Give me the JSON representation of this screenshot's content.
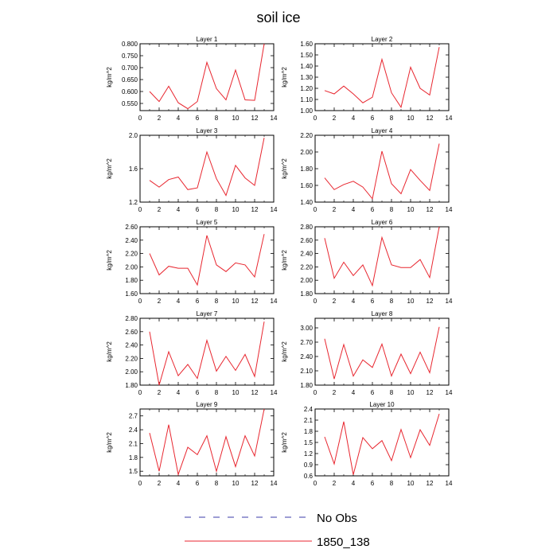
{
  "figure": {
    "title": "soil ice",
    "legend": [
      {
        "label": "No Obs",
        "color": "#3b3ba8",
        "dash": "dashed"
      },
      {
        "label": "1850_138",
        "color": "#e8262f",
        "dash": "solid"
      }
    ]
  },
  "chart_data": [
    {
      "type": "line",
      "title": "Layer 1",
      "xlabel": "",
      "ylabel": "kg/m^2",
      "xlim": [
        0,
        14
      ],
      "xticks": [
        "0",
        "2",
        "4",
        "6",
        "8",
        "10",
        "12",
        "14"
      ],
      "ylim": [
        0.52,
        0.8
      ],
      "yticks": [
        "0.550",
        "0.600",
        "0.650",
        "0.700",
        "0.750",
        "0.800"
      ],
      "series": [
        {
          "name": "1850_138",
          "color": "#e8262f",
          "x": [
            1,
            2,
            3,
            4,
            5,
            6,
            7,
            8,
            9,
            10,
            11,
            12,
            13
          ],
          "values": [
            0.6,
            0.558,
            0.622,
            0.553,
            0.528,
            0.558,
            0.722,
            0.612,
            0.565,
            0.69,
            0.565,
            0.563,
            0.8
          ]
        }
      ]
    },
    {
      "type": "line",
      "title": "Layer 2",
      "xlabel": "",
      "ylabel": "kg/m^2",
      "xlim": [
        0,
        14
      ],
      "xticks": [
        "0",
        "2",
        "4",
        "6",
        "8",
        "10",
        "12",
        "14"
      ],
      "ylim": [
        1.0,
        1.6
      ],
      "yticks": [
        "1.00",
        "1.10",
        "1.20",
        "1.30",
        "1.40",
        "1.50",
        "1.60"
      ],
      "series": [
        {
          "name": "1850_138",
          "color": "#e8262f",
          "x": [
            1,
            2,
            3,
            4,
            5,
            6,
            7,
            8,
            9,
            10,
            11,
            12,
            13
          ],
          "values": [
            1.18,
            1.15,
            1.22,
            1.15,
            1.07,
            1.12,
            1.46,
            1.16,
            1.03,
            1.39,
            1.2,
            1.14,
            1.57
          ]
        }
      ]
    },
    {
      "type": "line",
      "title": "Layer 3",
      "xlabel": "",
      "ylabel": "kg/m^2",
      "xlim": [
        0,
        14
      ],
      "xticks": [
        "0",
        "2",
        "4",
        "6",
        "8",
        "10",
        "12",
        "14"
      ],
      "ylim": [
        1.2,
        2.0
      ],
      "yticks": [
        "1.2",
        "1.6",
        "2.0"
      ],
      "series": [
        {
          "name": "1850_138",
          "color": "#e8262f",
          "x": [
            1,
            2,
            3,
            4,
            5,
            6,
            7,
            8,
            9,
            10,
            11,
            12,
            13
          ],
          "values": [
            1.46,
            1.38,
            1.47,
            1.5,
            1.35,
            1.37,
            1.8,
            1.48,
            1.28,
            1.64,
            1.49,
            1.4,
            1.97
          ]
        }
      ]
    },
    {
      "type": "line",
      "title": "Layer 4",
      "xlabel": "",
      "ylabel": "kg/m^2",
      "xlim": [
        0,
        14
      ],
      "xticks": [
        "0",
        "2",
        "4",
        "6",
        "8",
        "10",
        "12",
        "14"
      ],
      "ylim": [
        1.4,
        2.2
      ],
      "yticks": [
        "1.40",
        "1.60",
        "1.80",
        "2.00",
        "2.20"
      ],
      "series": [
        {
          "name": "1850_138",
          "color": "#e8262f",
          "x": [
            1,
            2,
            3,
            4,
            5,
            6,
            7,
            8,
            9,
            10,
            11,
            12,
            13
          ],
          "values": [
            1.69,
            1.55,
            1.61,
            1.65,
            1.58,
            1.44,
            2.01,
            1.62,
            1.5,
            1.79,
            1.66,
            1.54,
            2.1
          ]
        }
      ]
    },
    {
      "type": "line",
      "title": "Layer 5",
      "xlabel": "",
      "ylabel": "kg/m^2",
      "xlim": [
        0,
        14
      ],
      "xticks": [
        "0",
        "2",
        "4",
        "6",
        "8",
        "10",
        "12",
        "14"
      ],
      "ylim": [
        1.6,
        2.6
      ],
      "yticks": [
        "1.60",
        "1.80",
        "2.00",
        "2.20",
        "2.40",
        "2.60"
      ],
      "series": [
        {
          "name": "1850_138",
          "color": "#e8262f",
          "x": [
            1,
            2,
            3,
            4,
            5,
            6,
            7,
            8,
            9,
            10,
            11,
            12,
            13
          ],
          "values": [
            2.2,
            1.88,
            2.01,
            1.98,
            1.98,
            1.73,
            2.47,
            2.03,
            1.93,
            2.06,
            2.03,
            1.85,
            2.49
          ]
        }
      ]
    },
    {
      "type": "line",
      "title": "Layer 6",
      "xlabel": "",
      "ylabel": "kg/m^2",
      "xlim": [
        0,
        14
      ],
      "xticks": [
        "0",
        "2",
        "4",
        "6",
        "8",
        "10",
        "12",
        "14"
      ],
      "ylim": [
        1.8,
        2.8
      ],
      "yticks": [
        "1.80",
        "2.00",
        "2.20",
        "2.40",
        "2.60",
        "2.80"
      ],
      "series": [
        {
          "name": "1850_138",
          "color": "#e8262f",
          "x": [
            1,
            2,
            3,
            4,
            5,
            6,
            7,
            8,
            9,
            10,
            11,
            12,
            13
          ],
          "values": [
            2.63,
            2.03,
            2.27,
            2.07,
            2.23,
            1.92,
            2.64,
            2.23,
            2.19,
            2.19,
            2.31,
            2.04,
            2.8
          ]
        }
      ]
    },
    {
      "type": "line",
      "title": "Layer 7",
      "xlabel": "",
      "ylabel": "kg/m^2",
      "xlim": [
        0,
        14
      ],
      "xticks": [
        "0",
        "2",
        "4",
        "6",
        "8",
        "10",
        "12",
        "14"
      ],
      "ylim": [
        1.8,
        2.8
      ],
      "yticks": [
        "1.80",
        "2.00",
        "2.20",
        "2.40",
        "2.60",
        "2.80"
      ],
      "series": [
        {
          "name": "1850_138",
          "color": "#e8262f",
          "x": [
            1,
            2,
            3,
            4,
            5,
            6,
            7,
            8,
            9,
            10,
            11,
            12,
            13
          ],
          "values": [
            2.6,
            1.8,
            2.3,
            1.94,
            2.11,
            1.9,
            2.47,
            2.01,
            2.23,
            2.02,
            2.26,
            1.93,
            2.75
          ]
        }
      ]
    },
    {
      "type": "line",
      "title": "Layer 8",
      "xlabel": "",
      "ylabel": "kg/m^2",
      "xlim": [
        0,
        14
      ],
      "xticks": [
        "0",
        "2",
        "4",
        "6",
        "8",
        "10",
        "12",
        "14"
      ],
      "ylim": [
        1.8,
        3.2
      ],
      "yticks": [
        "1.80",
        "2.10",
        "2.40",
        "2.70",
        "3.00"
      ],
      "series": [
        {
          "name": "1850_138",
          "color": "#e8262f",
          "x": [
            1,
            2,
            3,
            4,
            5,
            6,
            7,
            8,
            9,
            10,
            11,
            12,
            13
          ],
          "values": [
            2.77,
            1.93,
            2.65,
            1.99,
            2.33,
            2.17,
            2.66,
            1.99,
            2.45,
            2.04,
            2.49,
            2.06,
            3.02
          ]
        }
      ]
    },
    {
      "type": "line",
      "title": "Layer 9",
      "xlabel": "",
      "ylabel": "kg/m^2",
      "xlim": [
        0,
        14
      ],
      "xticks": [
        "0",
        "2",
        "4",
        "6",
        "8",
        "10",
        "12",
        "14"
      ],
      "ylim": [
        1.4,
        2.85
      ],
      "yticks": [
        "1.5",
        "1.8",
        "2.1",
        "2.4",
        "2.7"
      ],
      "series": [
        {
          "name": "1850_138",
          "color": "#e8262f",
          "x": [
            1,
            2,
            3,
            4,
            5,
            6,
            7,
            8,
            9,
            10,
            11,
            12,
            13
          ],
          "values": [
            2.33,
            1.5,
            2.51,
            1.43,
            2.02,
            1.86,
            2.27,
            1.5,
            2.25,
            1.6,
            2.27,
            1.83,
            2.85
          ]
        }
      ]
    },
    {
      "type": "line",
      "title": "Layer 10",
      "xlabel": "",
      "ylabel": "kg/m^2",
      "xlim": [
        0,
        14
      ],
      "xticks": [
        "0",
        "2",
        "4",
        "6",
        "8",
        "10",
        "12",
        "14"
      ],
      "ylim": [
        0.6,
        2.4
      ],
      "yticks": [
        "0.6",
        "0.9",
        "1.2",
        "1.5",
        "1.8",
        "2.1",
        "2.4"
      ],
      "series": [
        {
          "name": "1850_138",
          "color": "#e8262f",
          "x": [
            1,
            2,
            3,
            4,
            5,
            6,
            7,
            8,
            9,
            10,
            11,
            12,
            13
          ],
          "values": [
            1.65,
            0.92,
            2.06,
            0.63,
            1.63,
            1.33,
            1.55,
            1.01,
            1.85,
            1.09,
            1.84,
            1.42,
            2.27
          ]
        }
      ]
    }
  ]
}
